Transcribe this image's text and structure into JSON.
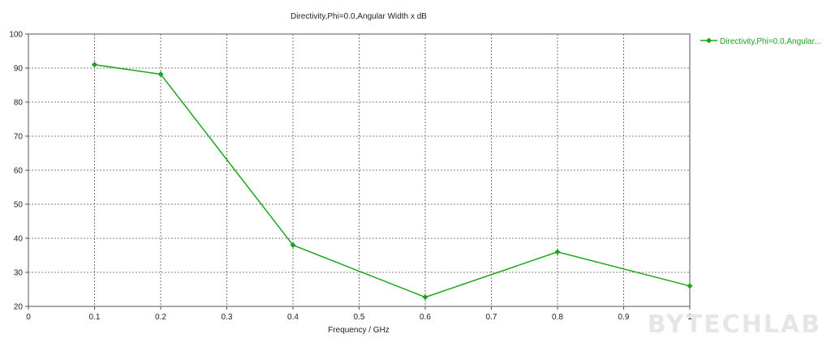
{
  "chart_data": {
    "type": "line",
    "title": "Directivity,Phi=0.0,Angular Width x dB",
    "xlabel": "Frequency / GHz",
    "ylabel": "",
    "xlim": [
      0,
      1
    ],
    "ylim": [
      20,
      100
    ],
    "x_ticks": [
      "0",
      "0.1",
      "0.2",
      "0.3",
      "0.4",
      "0.5",
      "0.6",
      "0.7",
      "0.8",
      "0.9",
      "1"
    ],
    "y_ticks": [
      "20",
      "30",
      "40",
      "50",
      "60",
      "70",
      "80",
      "90",
      "100"
    ],
    "grid": true,
    "legend_position": "right",
    "series": [
      {
        "name": "Directivity,Phi=0.0,Angular...",
        "color": "#1aa51a",
        "marker": "diamond",
        "x": [
          0.1,
          0.2,
          0.4,
          0.6,
          0.8,
          1.0
        ],
        "y": [
          91,
          88.2,
          38,
          22.7,
          36,
          26
        ]
      }
    ]
  },
  "watermark": {
    "text": "BYTECHLAB",
    "color": "#e6e6e6"
  }
}
